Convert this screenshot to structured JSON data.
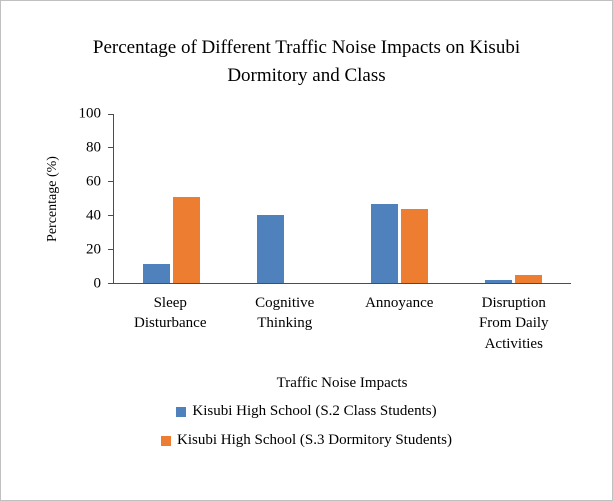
{
  "chart_data": {
    "type": "bar",
    "title": "Percentage of Different Traffic Noise Impacts on Kisubi Dormitory and Class",
    "categories": [
      "Sleep Disturbance",
      "Cognitive Thinking",
      "Annoyance",
      "Disruption From Daily Activities"
    ],
    "series": [
      {
        "name": "Kisubi High School (S.2 Class Students)",
        "color": "#4f81bd",
        "values": [
          11,
          40,
          47,
          2
        ]
      },
      {
        "name": "Kisubi High School (S.3 Dormitory Students)",
        "color": "#ed7d31",
        "values": [
          51,
          0,
          44,
          5
        ]
      }
    ],
    "xlabel": "Traffic Noise Impacts",
    "ylabel": "Percentage (%)",
    "ylim": [
      0,
      100
    ],
    "yticks": [
      0,
      20,
      40,
      60,
      80,
      100
    ],
    "grid": false,
    "legend_position": "bottom"
  }
}
